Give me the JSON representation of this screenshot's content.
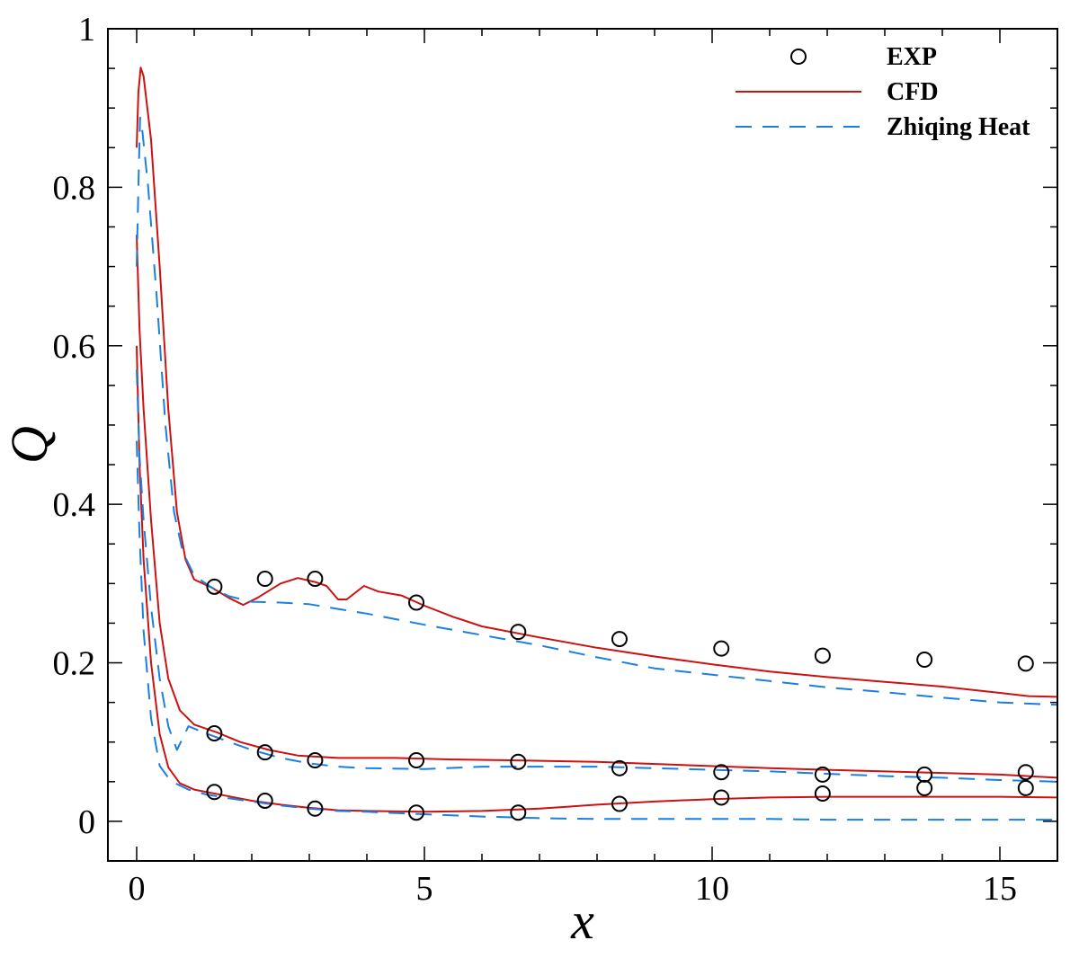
{
  "chart_data": {
    "type": "line",
    "xlabel": "x",
    "ylabel": "Q",
    "xlim": [
      -0.5,
      16
    ],
    "ylim": [
      -0.05,
      1.0
    ],
    "x_ticks": [
      0,
      5,
      10,
      15
    ],
    "x_tick_labels": [
      "0",
      "5",
      "10",
      "15"
    ],
    "y_ticks": [
      0,
      0.2,
      0.4,
      0.6,
      0.8,
      1.0
    ],
    "y_tick_labels": [
      "0",
      "0.2",
      "0.4",
      "0.6",
      "0.8",
      "1"
    ],
    "grid": false,
    "legend_position": "top-right",
    "legend": [
      {
        "label": "EXP",
        "style": "marker",
        "color": "#000000"
      },
      {
        "label": "CFD",
        "style": "solid",
        "color": "#cc1111"
      },
      {
        "label": "Zhiqing Heat",
        "style": "dashed",
        "color": "#1a7fe0"
      }
    ],
    "series": [
      {
        "name": "EXP",
        "kind": "scatter",
        "color": "#000000",
        "points": [
          [
            1.35,
            0.296
          ],
          [
            2.23,
            0.306
          ],
          [
            3.1,
            0.306
          ],
          [
            4.86,
            0.276
          ],
          [
            6.63,
            0.239
          ],
          [
            8.39,
            0.23
          ],
          [
            10.16,
            0.218
          ],
          [
            11.92,
            0.209
          ],
          [
            13.69,
            0.204
          ],
          [
            15.45,
            0.199
          ],
          [
            1.35,
            0.111
          ],
          [
            2.23,
            0.087
          ],
          [
            3.1,
            0.077
          ],
          [
            4.86,
            0.077
          ],
          [
            6.63,
            0.075
          ],
          [
            8.39,
            0.067
          ],
          [
            10.16,
            0.062
          ],
          [
            11.92,
            0.059
          ],
          [
            13.69,
            0.059
          ],
          [
            15.45,
            0.062
          ],
          [
            1.35,
            0.037
          ],
          [
            2.23,
            0.026
          ],
          [
            3.1,
            0.016
          ],
          [
            4.86,
            0.011
          ],
          [
            6.63,
            0.011
          ],
          [
            8.39,
            0.022
          ],
          [
            10.16,
            0.03
          ],
          [
            11.92,
            0.035
          ],
          [
            13.69,
            0.042
          ],
          [
            15.45,
            0.042
          ]
        ]
      },
      {
        "name": "CFD",
        "kind": "line",
        "color": "#cc1111",
        "curves": [
          [
            [
              0.0,
              0.85
            ],
            [
              0.03,
              0.92
            ],
            [
              0.07,
              0.951
            ],
            [
              0.12,
              0.94
            ],
            [
              0.25,
              0.86
            ],
            [
              0.4,
              0.7
            ],
            [
              0.55,
              0.52
            ],
            [
              0.7,
              0.39
            ],
            [
              0.85,
              0.33
            ],
            [
              1.0,
              0.305
            ],
            [
              1.3,
              0.295
            ],
            [
              1.6,
              0.282
            ],
            [
              1.85,
              0.273
            ],
            [
              2.1,
              0.282
            ],
            [
              2.5,
              0.3
            ],
            [
              2.8,
              0.307
            ],
            [
              3.1,
              0.302
            ],
            [
              3.3,
              0.297
            ],
            [
              3.5,
              0.28
            ],
            [
              3.65,
              0.28
            ],
            [
              3.95,
              0.297
            ],
            [
              4.2,
              0.29
            ],
            [
              4.6,
              0.285
            ],
            [
              5.0,
              0.272
            ],
            [
              5.5,
              0.258
            ],
            [
              6.0,
              0.246
            ],
            [
              7.0,
              0.232
            ],
            [
              8.0,
              0.219
            ],
            [
              9.0,
              0.208
            ],
            [
              10.0,
              0.198
            ],
            [
              11.0,
              0.189
            ],
            [
              12.0,
              0.182
            ],
            [
              13.0,
              0.176
            ],
            [
              14.0,
              0.17
            ],
            [
              15.0,
              0.162
            ],
            [
              15.5,
              0.158
            ],
            [
              16.0,
              0.157
            ]
          ],
          [
            [
              0.0,
              0.74
            ],
            [
              0.05,
              0.62
            ],
            [
              0.12,
              0.52
            ],
            [
              0.25,
              0.38
            ],
            [
              0.4,
              0.25
            ],
            [
              0.55,
              0.18
            ],
            [
              0.75,
              0.14
            ],
            [
              1.0,
              0.122
            ],
            [
              1.4,
              0.112
            ],
            [
              1.8,
              0.1
            ],
            [
              2.3,
              0.09
            ],
            [
              2.8,
              0.083
            ],
            [
              3.5,
              0.08
            ],
            [
              4.5,
              0.08
            ],
            [
              5.5,
              0.078
            ],
            [
              6.5,
              0.077
            ],
            [
              8.0,
              0.075
            ],
            [
              9.5,
              0.071
            ],
            [
              11.0,
              0.067
            ],
            [
              12.5,
              0.064
            ],
            [
              14.0,
              0.061
            ],
            [
              15.0,
              0.059
            ],
            [
              16.0,
              0.055
            ]
          ],
          [
            [
              0.0,
              0.6
            ],
            [
              0.05,
              0.45
            ],
            [
              0.12,
              0.33
            ],
            [
              0.25,
              0.2
            ],
            [
              0.4,
              0.11
            ],
            [
              0.55,
              0.068
            ],
            [
              0.75,
              0.048
            ],
            [
              1.0,
              0.04
            ],
            [
              1.5,
              0.033
            ],
            [
              2.0,
              0.026
            ],
            [
              2.5,
              0.021
            ],
            [
              3.0,
              0.017
            ],
            [
              3.5,
              0.014
            ],
            [
              4.0,
              0.013
            ],
            [
              5.0,
              0.012
            ],
            [
              6.0,
              0.013
            ],
            [
              7.0,
              0.016
            ],
            [
              8.0,
              0.021
            ],
            [
              9.0,
              0.025
            ],
            [
              10.0,
              0.028
            ],
            [
              11.0,
              0.03
            ],
            [
              12.0,
              0.031
            ],
            [
              13.0,
              0.031
            ],
            [
              14.0,
              0.031
            ],
            [
              15.0,
              0.031
            ],
            [
              16.0,
              0.03
            ]
          ]
        ]
      },
      {
        "name": "Zhiqing Heat",
        "kind": "line",
        "dashed": true,
        "color": "#1a7fe0",
        "curves": [
          [
            [
              0.0,
              0.7
            ],
            [
              0.03,
              0.8
            ],
            [
              0.06,
              0.888
            ],
            [
              0.1,
              0.87
            ],
            [
              0.2,
              0.8
            ],
            [
              0.35,
              0.66
            ],
            [
              0.5,
              0.5
            ],
            [
              0.65,
              0.39
            ],
            [
              0.8,
              0.34
            ],
            [
              1.0,
              0.31
            ],
            [
              1.3,
              0.295
            ],
            [
              1.6,
              0.284
            ],
            [
              2.0,
              0.277
            ],
            [
              2.5,
              0.276
            ],
            [
              3.0,
              0.274
            ],
            [
              3.5,
              0.268
            ],
            [
              4.0,
              0.262
            ],
            [
              5.0,
              0.248
            ],
            [
              6.0,
              0.235
            ],
            [
              7.0,
              0.222
            ],
            [
              8.0,
              0.207
            ],
            [
              9.0,
              0.193
            ],
            [
              10.0,
              0.185
            ],
            [
              11.0,
              0.177
            ],
            [
              12.0,
              0.169
            ],
            [
              13.0,
              0.163
            ],
            [
              14.0,
              0.156
            ],
            [
              15.0,
              0.15
            ],
            [
              16.0,
              0.147
            ]
          ],
          [
            [
              0.0,
              0.57
            ],
            [
              0.05,
              0.46
            ],
            [
              0.12,
              0.38
            ],
            [
              0.25,
              0.27
            ],
            [
              0.4,
              0.18
            ],
            [
              0.55,
              0.12
            ],
            [
              0.7,
              0.09
            ],
            [
              0.9,
              0.12
            ],
            [
              1.1,
              0.114
            ],
            [
              1.5,
              0.103
            ],
            [
              2.0,
              0.09
            ],
            [
              2.5,
              0.08
            ],
            [
              3.0,
              0.073
            ],
            [
              3.5,
              0.069
            ],
            [
              4.0,
              0.067
            ],
            [
              5.0,
              0.066
            ],
            [
              6.0,
              0.069
            ],
            [
              7.0,
              0.069
            ],
            [
              8.0,
              0.069
            ],
            [
              9.0,
              0.067
            ],
            [
              10.0,
              0.065
            ],
            [
              11.0,
              0.063
            ],
            [
              12.0,
              0.06
            ],
            [
              13.0,
              0.057
            ],
            [
              14.0,
              0.055
            ],
            [
              15.0,
              0.052
            ],
            [
              16.0,
              0.05
            ]
          ],
          [
            [
              0.0,
              0.48
            ],
            [
              0.05,
              0.36
            ],
            [
              0.12,
              0.24
            ],
            [
              0.25,
              0.13
            ],
            [
              0.4,
              0.07
            ],
            [
              0.55,
              0.055
            ],
            [
              0.7,
              0.047
            ],
            [
              0.9,
              0.04
            ],
            [
              1.2,
              0.034
            ],
            [
              1.6,
              0.029
            ],
            [
              2.0,
              0.025
            ],
            [
              2.5,
              0.02
            ],
            [
              3.0,
              0.016
            ],
            [
              3.5,
              0.013
            ],
            [
              4.0,
              0.012
            ],
            [
              5.0,
              0.009
            ],
            [
              6.0,
              0.006
            ],
            [
              7.0,
              0.004
            ],
            [
              8.0,
              0.003
            ],
            [
              9.0,
              0.003
            ],
            [
              10.0,
              0.003
            ],
            [
              11.0,
              0.003
            ],
            [
              12.0,
              0.002
            ],
            [
              13.0,
              0.002
            ],
            [
              14.0,
              0.002
            ],
            [
              15.0,
              0.002
            ],
            [
              16.0,
              0.002
            ]
          ]
        ]
      }
    ]
  }
}
